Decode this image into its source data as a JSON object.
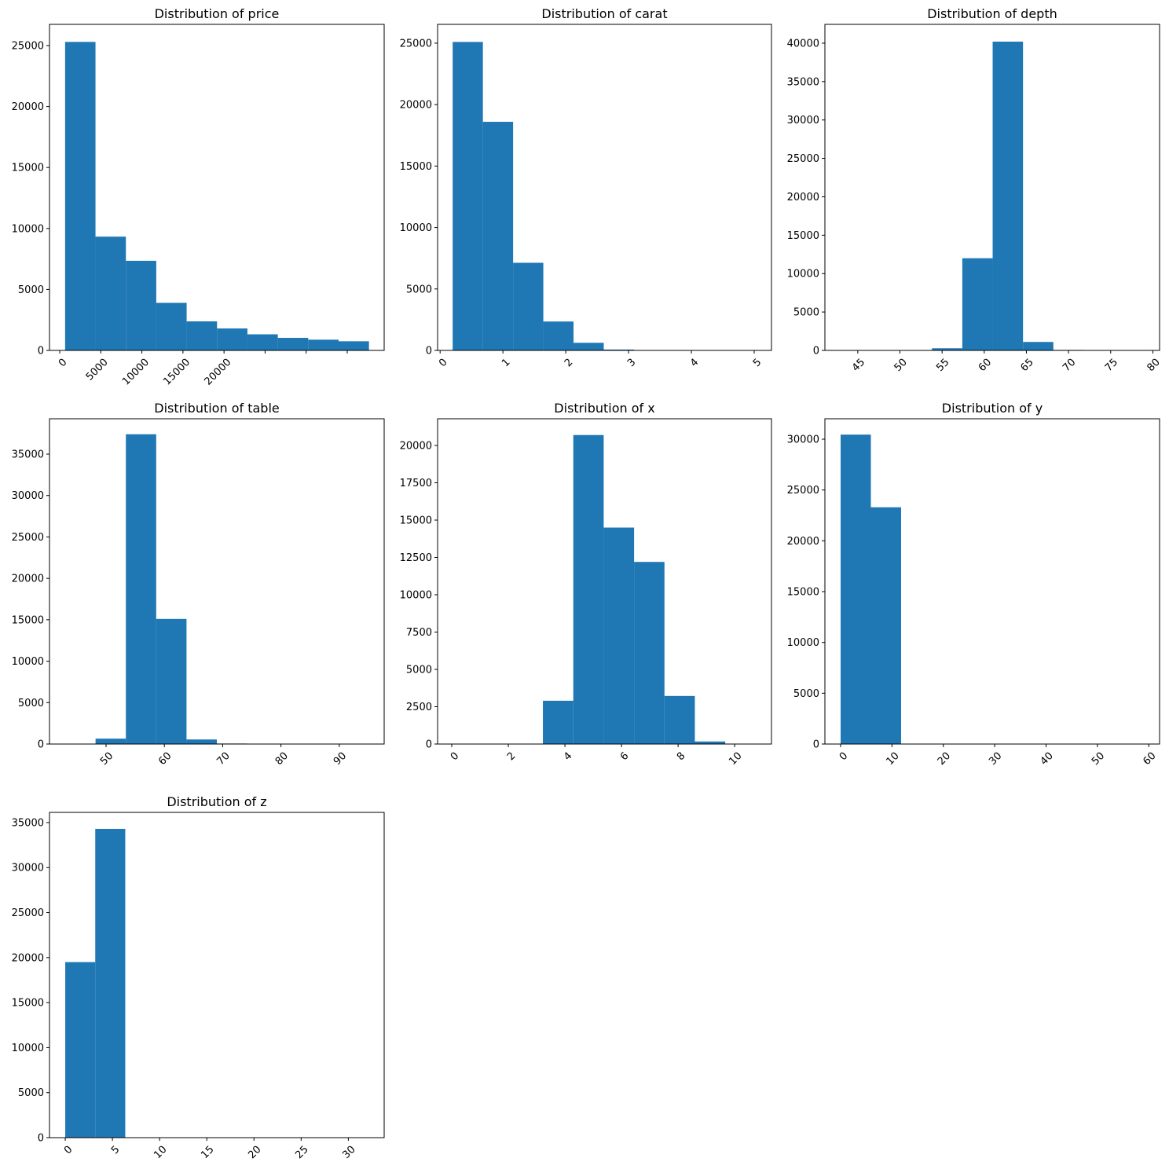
{
  "chart_data": [
    {
      "type": "bar",
      "title": "Distribution of price",
      "xlim": [
        -1250,
        39500
      ],
      "ylim": [
        0,
        26740
      ],
      "bin_start": 650,
      "bin_width": 3700,
      "values": [
        25300,
        9330,
        7350,
        3900,
        2380,
        1800,
        1320,
        1030,
        880,
        750
      ],
      "xticks": [
        0,
        5000,
        10000,
        15000,
        20000,
        25000,
        30000,
        35000
      ],
      "xtick_labels": [
        "0",
        "5000",
        "10000",
        "15000",
        "20000",
        "",
        "",
        ""
      ],
      "yticks": [
        0,
        5000,
        10000,
        15000,
        20000,
        25000
      ],
      "ytick_labels": [
        "0",
        "5000",
        "10000",
        "15000",
        "20000",
        "25000"
      ]
    },
    {
      "type": "bar",
      "title": "Distribution of carat",
      "xlim": [
        -0.04,
        5.275
      ],
      "ylim": [
        0,
        26530
      ],
      "bin_start": 0.2,
      "bin_width": 0.481,
      "values": [
        25100,
        18600,
        7130,
        2350,
        620,
        70,
        30,
        10,
        5,
        2
      ],
      "xticks": [
        0,
        1,
        2,
        3,
        4,
        5
      ],
      "xtick_labels": [
        "0",
        "1",
        "2",
        "3",
        "4",
        "5"
      ],
      "yticks": [
        0,
        5000,
        10000,
        15000,
        20000,
        25000
      ],
      "ytick_labels": [
        "0",
        "5000",
        "10000",
        "15000",
        "20000",
        "25000"
      ]
    },
    {
      "type": "bar",
      "title": "Distribution of depth",
      "xlim": [
        41.1,
        80.8
      ],
      "ylim": [
        0,
        42450
      ],
      "bin_start": 43,
      "bin_width": 3.6,
      "values": [
        2,
        3,
        45,
        280,
        12000,
        40200,
        1100,
        60,
        5,
        2
      ],
      "xticks": [
        45,
        50,
        55,
        60,
        65,
        70,
        75,
        80
      ],
      "xtick_labels": [
        "45",
        "50",
        "55",
        "60",
        "65",
        "70",
        "75",
        "80"
      ],
      "yticks": [
        0,
        5000,
        10000,
        15000,
        20000,
        25000,
        30000,
        35000,
        40000
      ],
      "ytick_labels": [
        "0",
        "5000",
        "10000",
        "15000",
        "20000",
        "25000",
        "30000",
        "35000",
        "40000"
      ]
    },
    {
      "type": "bar",
      "title": "Distribution of table",
      "xlim": [
        40.3,
        97.7
      ],
      "ylim": [
        0,
        39270
      ],
      "bin_start": 43,
      "bin_width": 5.2,
      "values": [
        5,
        650,
        37400,
        15100,
        550,
        60,
        5,
        2,
        1,
        1
      ],
      "xticks": [
        50,
        60,
        70,
        80,
        90
      ],
      "xtick_labels": [
        "50",
        "60",
        "70",
        "80",
        "90"
      ],
      "yticks": [
        0,
        5000,
        10000,
        15000,
        20000,
        25000,
        30000,
        35000
      ],
      "ytick_labels": [
        "0",
        "5000",
        "10000",
        "15000",
        "20000",
        "25000",
        "30000",
        "35000"
      ]
    },
    {
      "type": "bar",
      "title": "Distribution of x",
      "xlim": [
        -0.5,
        11.3
      ],
      "ylim": [
        0,
        21790
      ],
      "bin_start": 0,
      "bin_width": 1.074,
      "values": [
        8,
        0,
        0,
        2900,
        20700,
        14500,
        12200,
        3220,
        170,
        5
      ],
      "xticks": [
        0,
        2,
        4,
        6,
        8,
        10
      ],
      "xtick_labels": [
        "0",
        "2",
        "4",
        "6",
        "8",
        "10"
      ],
      "yticks": [
        0,
        2500,
        5000,
        7500,
        10000,
        12500,
        15000,
        17500,
        20000
      ],
      "ytick_labels": [
        "0",
        "2500",
        "5000",
        "7500",
        "10000",
        "12500",
        "15000",
        "17500",
        "20000"
      ]
    },
    {
      "type": "bar",
      "title": "Distribution of y",
      "xlim": [
        -3.06,
        62.1
      ],
      "ylim": [
        0,
        32010
      ],
      "bin_start": 0,
      "bin_width": 5.89,
      "values": [
        30450,
        23300,
        5,
        1,
        0,
        0,
        0,
        0,
        0,
        1
      ],
      "xticks": [
        0,
        10,
        20,
        30,
        40,
        50,
        60
      ],
      "xtick_labels": [
        "0",
        "10",
        "20",
        "30",
        "40",
        "50",
        "60"
      ],
      "yticks": [
        0,
        5000,
        10000,
        15000,
        20000,
        25000,
        30000
      ],
      "ytick_labels": [
        "0",
        "5000",
        "10000",
        "15000",
        "20000",
        "25000",
        "30000"
      ]
    },
    {
      "type": "bar",
      "title": "Distribution of z",
      "xlim": [
        -1.67,
        33.8
      ],
      "ylim": [
        0,
        36130
      ],
      "bin_start": 0,
      "bin_width": 3.18,
      "values": [
        19500,
        34300,
        5,
        0,
        0,
        0,
        0,
        0,
        0,
        1
      ],
      "xticks": [
        0,
        5,
        10,
        15,
        20,
        25,
        30
      ],
      "xtick_labels": [
        "0",
        "5",
        "10",
        "15",
        "20",
        "25",
        "30"
      ],
      "yticks": [
        0,
        5000,
        10000,
        15000,
        20000,
        25000,
        30000,
        35000
      ],
      "ytick_labels": [
        "0",
        "5000",
        "10000",
        "15000",
        "20000",
        "25000",
        "30000",
        "35000"
      ]
    }
  ],
  "colors": {
    "bar": "#1f77b4"
  }
}
